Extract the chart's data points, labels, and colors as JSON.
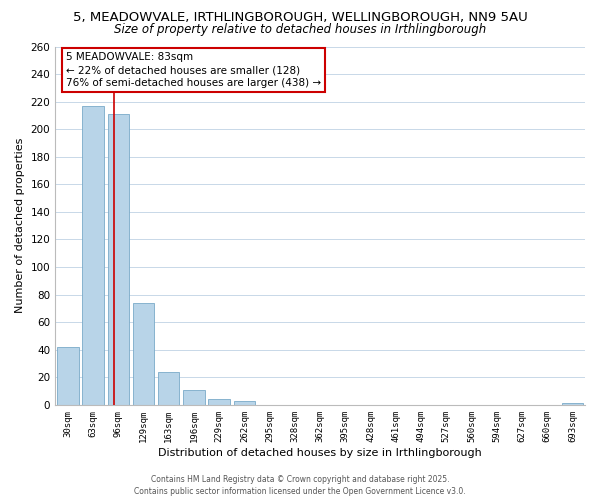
{
  "title": "5, MEADOWVALE, IRTHLINGBOROUGH, WELLINGBOROUGH, NN9 5AU",
  "subtitle": "Size of property relative to detached houses in Irthlingborough",
  "xlabel": "Distribution of detached houses by size in Irthlingborough",
  "ylabel": "Number of detached properties",
  "bar_color": "#b8d4e8",
  "bar_edge_color": "#7aaac8",
  "categories": [
    "30sqm",
    "63sqm",
    "96sqm",
    "129sqm",
    "163sqm",
    "196sqm",
    "229sqm",
    "262sqm",
    "295sqm",
    "328sqm",
    "362sqm",
    "395sqm",
    "428sqm",
    "461sqm",
    "494sqm",
    "527sqm",
    "560sqm",
    "594sqm",
    "627sqm",
    "660sqm",
    "693sqm"
  ],
  "values": [
    42,
    217,
    211,
    74,
    24,
    11,
    4,
    3,
    0,
    0,
    0,
    0,
    0,
    0,
    0,
    0,
    0,
    0,
    0,
    0,
    1
  ],
  "ylim": [
    0,
    260
  ],
  "yticks": [
    0,
    20,
    40,
    60,
    80,
    100,
    120,
    140,
    160,
    180,
    200,
    220,
    240,
    260
  ],
  "vline_x": 1.83,
  "vline_color": "#cc0000",
  "annotation_title": "5 MEADOWVALE: 83sqm",
  "annotation_line1": "← 22% of detached houses are smaller (128)",
  "annotation_line2": "76% of semi-detached houses are larger (438) →",
  "footer1": "Contains HM Land Registry data © Crown copyright and database right 2025.",
  "footer2": "Contains public sector information licensed under the Open Government Licence v3.0.",
  "bg_color": "#ffffff",
  "grid_color": "#c8d8e8"
}
